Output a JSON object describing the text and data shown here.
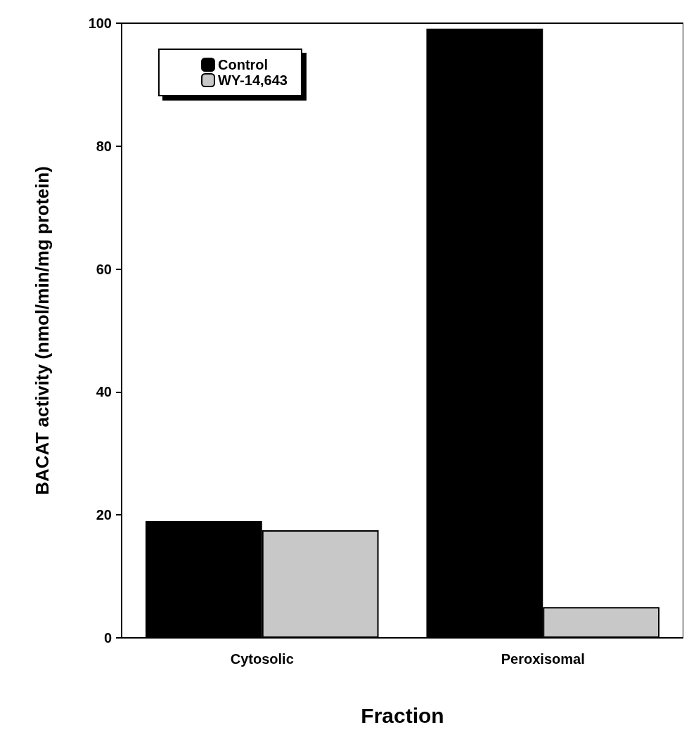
{
  "chart_data": {
    "type": "bar",
    "xlabel": "Fraction",
    "ylabel": "BACAT activity (nmol/min/mg protein)",
    "categories": [
      "Cytosolic",
      "Peroxisomal"
    ],
    "series": [
      {
        "name": "Control",
        "color": "#000000",
        "values": [
          19.0,
          99.1
        ]
      },
      {
        "name": "WY-14,643",
        "color": "#c8c8c8",
        "values": [
          17.5,
          5.0
        ]
      }
    ],
    "ylim": [
      0,
      100
    ],
    "yticks": [
      0,
      20,
      40,
      60,
      80,
      100
    ],
    "grid": false,
    "legend": "top left"
  }
}
